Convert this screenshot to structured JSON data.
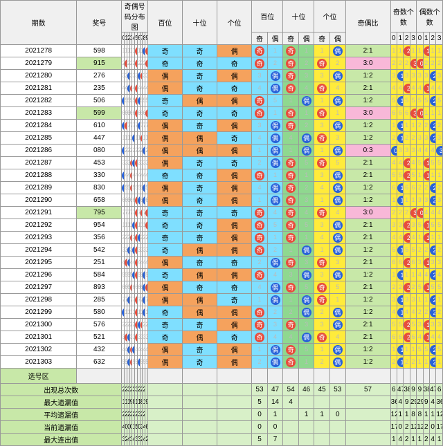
{
  "headers": {
    "period": "期数",
    "prize": "奖号",
    "dist": "奇偶号码分布图",
    "hundred": "百位",
    "ten": "十位",
    "unit": "个位",
    "ratio": "奇偶比",
    "oddcnt": "奇数个数",
    "evencnt": "偶数个数",
    "odd": "奇",
    "even": "偶",
    "sel": "选号区"
  },
  "digits": [
    "0",
    "1",
    "2",
    "3",
    "4",
    "5",
    "6",
    "7",
    "8",
    "9"
  ],
  "cnts": [
    "0",
    "1",
    "2",
    "3"
  ],
  "colors": {
    "bg_cyan": "#7fdfff",
    "bg_orange": "#f5a25d",
    "bg_green": "#8fd88f",
    "bg_yellow": "#ffeb3b",
    "bg_pink": "#f8b8d8",
    "red": "#e74c3c",
    "blue": "#2962d8"
  },
  "rows": [
    {
      "p": "2021278",
      "z": "598",
      "h": "奇",
      "t": "奇",
      "u": "偶",
      "ho": 0,
      "to": 0,
      "uo": 1,
      "r": "2:1",
      "oc": 2,
      "ec": 1
    },
    {
      "p": "2021279",
      "z": "915",
      "h": "奇",
      "t": "奇",
      "u": "奇",
      "ho": 0,
      "to": 0,
      "uo": 0,
      "r": "3:0",
      "oc": 3,
      "ec": 0
    },
    {
      "p": "2021280",
      "z": "276",
      "h": "偶",
      "t": "奇",
      "u": "偶",
      "ho": 1,
      "to": 0,
      "uo": 1,
      "r": "1:2",
      "oc": 1,
      "ec": 2
    },
    {
      "p": "2021281",
      "z": "235",
      "h": "偶",
      "t": "奇",
      "u": "奇",
      "ho": 1,
      "to": 0,
      "uo": 0,
      "r": "2:1",
      "oc": 2,
      "ec": 1
    },
    {
      "p": "2021282",
      "z": "506",
      "h": "奇",
      "t": "偶",
      "u": "偶",
      "ho": 0,
      "to": 1,
      "uo": 1,
      "r": "1:2",
      "oc": 1,
      "ec": 2
    },
    {
      "p": "2021283",
      "z": "599",
      "h": "奇",
      "t": "奇",
      "u": "奇",
      "ho": 0,
      "to": 0,
      "uo": 0,
      "r": "3:0",
      "oc": 3,
      "ec": 0
    },
    {
      "p": "2021284",
      "z": "610",
      "h": "偶",
      "t": "奇",
      "u": "偶",
      "ho": 1,
      "to": 0,
      "uo": 1,
      "r": "1:2",
      "oc": 1,
      "ec": 2
    },
    {
      "p": "2021285",
      "z": "447",
      "h": "偶",
      "t": "偶",
      "u": "奇",
      "ho": 1,
      "to": 1,
      "uo": 0,
      "r": "1:2",
      "oc": 1,
      "ec": 2
    },
    {
      "p": "2021286",
      "z": "080",
      "h": "偶",
      "t": "偶",
      "u": "偶",
      "ho": 1,
      "to": 1,
      "uo": 1,
      "r": "0:3",
      "oc": 0,
      "ec": 3
    },
    {
      "p": "2021287",
      "z": "453",
      "h": "偶",
      "t": "奇",
      "u": "奇",
      "ho": 1,
      "to": 0,
      "uo": 0,
      "r": "2:1",
      "oc": 2,
      "ec": 1
    },
    {
      "p": "2021288",
      "z": "330",
      "h": "奇",
      "t": "奇",
      "u": "偶",
      "ho": 0,
      "to": 0,
      "uo": 1,
      "r": "2:1",
      "oc": 2,
      "ec": 1
    },
    {
      "p": "2021289",
      "z": "830",
      "h": "偶",
      "t": "奇",
      "u": "偶",
      "ho": 1,
      "to": 0,
      "uo": 1,
      "r": "1:2",
      "oc": 1,
      "ec": 2
    },
    {
      "p": "2021290",
      "z": "658",
      "h": "偶",
      "t": "奇",
      "u": "偶",
      "ho": 1,
      "to": 0,
      "uo": 1,
      "r": "1:2",
      "oc": 1,
      "ec": 2
    },
    {
      "p": "2021291",
      "z": "795",
      "h": "奇",
      "t": "奇",
      "u": "奇",
      "ho": 0,
      "to": 0,
      "uo": 0,
      "r": "3:0",
      "oc": 3,
      "ec": 0
    },
    {
      "p": "2021292",
      "z": "954",
      "h": "奇",
      "t": "奇",
      "u": "偶",
      "ho": 0,
      "to": 0,
      "uo": 1,
      "r": "2:1",
      "oc": 2,
      "ec": 1
    },
    {
      "p": "2021293",
      "z": "356",
      "h": "奇",
      "t": "奇",
      "u": "偶",
      "ho": 0,
      "to": 0,
      "uo": 1,
      "r": "2:1",
      "oc": 2,
      "ec": 1
    },
    {
      "p": "2021294",
      "z": "542",
      "h": "奇",
      "t": "偶",
      "u": "偶",
      "ho": 0,
      "to": 1,
      "uo": 1,
      "r": "1:2",
      "oc": 1,
      "ec": 2
    },
    {
      "p": "2021295",
      "z": "251",
      "h": "偶",
      "t": "奇",
      "u": "奇",
      "ho": 1,
      "to": 0,
      "uo": 0,
      "r": "2:1",
      "oc": 2,
      "ec": 1
    },
    {
      "p": "2021296",
      "z": "584",
      "h": "奇",
      "t": "偶",
      "u": "偶",
      "ho": 0,
      "to": 1,
      "uo": 1,
      "r": "1:2",
      "oc": 1,
      "ec": 2
    },
    {
      "p": "2021297",
      "z": "893",
      "h": "偶",
      "t": "奇",
      "u": "奇",
      "ho": 1,
      "to": 0,
      "uo": 0,
      "r": "2:1",
      "oc": 2,
      "ec": 1
    },
    {
      "p": "2021298",
      "z": "285",
      "h": "偶",
      "t": "偶",
      "u": "奇",
      "ho": 1,
      "to": 1,
      "uo": 0,
      "r": "1:2",
      "oc": 1,
      "ec": 2
    },
    {
      "p": "2021299",
      "z": "580",
      "h": "奇",
      "t": "偶",
      "u": "偶",
      "ho": 0,
      "to": 1,
      "uo": 1,
      "r": "1:2",
      "oc": 1,
      "ec": 2
    },
    {
      "p": "2021300",
      "z": "576",
      "h": "奇",
      "t": "奇",
      "u": "偶",
      "ho": 0,
      "to": 0,
      "uo": 1,
      "r": "2:1",
      "oc": 2,
      "ec": 1
    },
    {
      "p": "2021301",
      "z": "521",
      "h": "奇",
      "t": "偶",
      "u": "奇",
      "ho": 0,
      "to": 1,
      "uo": 0,
      "r": "2:1",
      "oc": 2,
      "ec": 1
    },
    {
      "p": "2021302",
      "z": "432",
      "h": "偶",
      "t": "奇",
      "u": "偶",
      "ho": 1,
      "to": 0,
      "uo": 1,
      "r": "1:2",
      "oc": 1,
      "ec": 2
    },
    {
      "p": "2021303",
      "z": "632",
      "h": "偶",
      "t": "奇",
      "u": "偶",
      "ho": 1,
      "to": 0,
      "uo": 1,
      "r": "1:2",
      "oc": 1,
      "ec": 2
    }
  ],
  "stats": [
    {
      "lbl": "出现总次数",
      "dist": [
        "27",
        "28",
        "32",
        "26",
        "31",
        "33",
        "27",
        "27",
        "29",
        ""
      ],
      "pos": [
        "",
        "",
        "",
        "",
        "",
        "",
        "53",
        "47",
        "54",
        "46",
        "45",
        "53",
        "57"
      ],
      "cnt": [
        "6",
        "47",
        "38",
        "9",
        "9",
        "38",
        "47",
        "6"
      ]
    },
    {
      "lbl": "最大遗漏值",
      "dist": [
        "11",
        "10",
        "12",
        "9",
        "8",
        "13",
        "11",
        "8",
        "12",
        "9"
      ],
      "pos": [
        "",
        "",
        "",
        "",
        "",
        "",
        "5",
        "14",
        "4",
        "",
        "",
        "",
        ""
      ],
      "cnt": [
        "36",
        "4",
        "9",
        "29",
        "29",
        "9",
        "4",
        "36"
      ]
    },
    {
      "lbl": "平均遗漏值",
      "dist": [
        "2",
        "2",
        "2",
        "2",
        "2",
        "2",
        "3",
        "2",
        "2",
        ""
      ],
      "pos": [
        "",
        "",
        "",
        "",
        "",
        "",
        "0",
        "1",
        "",
        "1",
        "1",
        "0",
        ""
      ],
      "cnt": [
        "12",
        "1",
        "1",
        "8",
        "8",
        "1",
        "1",
        "12"
      ]
    },
    {
      "lbl": "当前遗漏值",
      "dist": [
        "4",
        "0",
        "0",
        "0",
        "1",
        "5",
        "0",
        "3",
        "4",
        "6"
      ],
      "pos": [
        "",
        "",
        "",
        "",
        "",
        "",
        "0",
        "0",
        "",
        "",
        "",
        "",
        ""
      ],
      "cnt": [
        "17",
        "0",
        "2",
        "12",
        "12",
        "2",
        "0",
        "17"
      ]
    },
    {
      "lbl": "最大连出值",
      "dist": [
        "3",
        "2",
        "4",
        "3",
        "4",
        "3",
        "3",
        "2",
        "4",
        "2"
      ],
      "pos": [
        "",
        "",
        "",
        "",
        "",
        "",
        "5",
        "7",
        "",
        "",
        "",
        "",
        ""
      ],
      "cnt": [
        "1",
        "4",
        "2",
        "1",
        "1",
        "2",
        "4",
        "1"
      ]
    }
  ]
}
